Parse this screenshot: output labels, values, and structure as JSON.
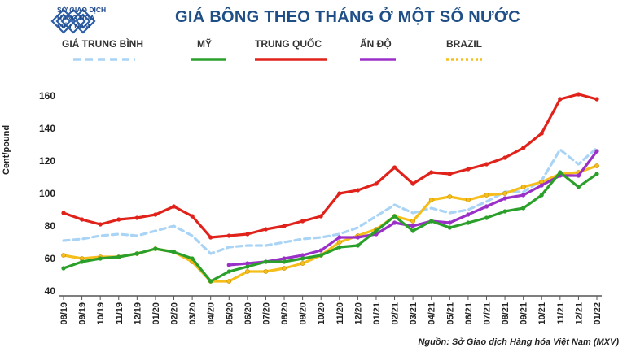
{
  "header": {
    "logo_lines": [
      "SỞ GIAO DỊCH",
      "HÀNG HÓA",
      "VIỆT NAM"
    ],
    "title": "GIÁ BÔNG THEO THÁNG Ở MỘT SỐ NƯỚC"
  },
  "legend": [
    {
      "label": "GIÁ TRUNG BÌNH",
      "color": "#a9d4f5",
      "style": "dashed"
    },
    {
      "label": "MỸ",
      "color": "#2aa02a",
      "style": "solid"
    },
    {
      "label": "TRUNG QUỐC",
      "color": "#e0221a",
      "style": "solid"
    },
    {
      "label": "ẤN ĐỘ",
      "color": "#9b30c8",
      "style": "solid"
    },
    {
      "label": "BRAZIL",
      "color": "#f5be1a",
      "style": "dotted"
    }
  ],
  "source": "Nguồn: Sở Giao dịch Hàng hóa Việt Nam (MXV)",
  "chart_data": {
    "type": "line",
    "title": "GIÁ BÔNG THEO THÁNG Ở MỘT SỐ NƯỚC",
    "xlabel": "",
    "ylabel": "Cent/pound",
    "ylim": [
      40,
      165
    ],
    "yticks": [
      40,
      60,
      80,
      100,
      120,
      140,
      160
    ],
    "grid": false,
    "categories": [
      "08/19",
      "09/19",
      "10/19",
      "11/19",
      "12/19",
      "01/20",
      "02/20",
      "03/20",
      "04/20",
      "05/20",
      "06/20",
      "07/20",
      "08/20",
      "09/20",
      "10/20",
      "11/20",
      "12/20",
      "01/21",
      "02/21",
      "03/21",
      "04/21",
      "05/21",
      "06/21",
      "07/21",
      "08/21",
      "09/21",
      "10/21",
      "11/21",
      "12/21",
      "01/22"
    ],
    "series": [
      {
        "name": "Giá trung bình",
        "color": "#a9d4f5",
        "dash": "7,5",
        "values": [
          71,
          72,
          74,
          75,
          74,
          77,
          80,
          74,
          63,
          67,
          68,
          68,
          70,
          72,
          73,
          75,
          79,
          86,
          93,
          88,
          91,
          88,
          90,
          95,
          101,
          101,
          108,
          127,
          118,
          128
        ]
      },
      {
        "name": "Mỹ",
        "color": "#2aa02a",
        "values": [
          54,
          58,
          60,
          61,
          63,
          66,
          64,
          60,
          46,
          52,
          55,
          58,
          58,
          60,
          62,
          67,
          68,
          77,
          86,
          77,
          83,
          79,
          82,
          85,
          89,
          91,
          99,
          113,
          104,
          112
        ]
      },
      {
        "name": "Trung Quốc",
        "color": "#e0221a",
        "values": [
          88,
          84,
          81,
          84,
          85,
          87,
          92,
          86,
          73,
          74,
          75,
          78,
          80,
          83,
          86,
          100,
          102,
          106,
          116,
          106,
          113,
          112,
          115,
          118,
          122,
          128,
          137,
          158,
          161,
          158
        ]
      },
      {
        "name": "Ấn Độ",
        "color": "#9b30c8",
        "start": 9,
        "values": [
          null,
          null,
          null,
          null,
          null,
          null,
          null,
          null,
          null,
          56,
          57,
          58,
          60,
          62,
          65,
          73,
          73,
          75,
          82,
          80,
          83,
          82,
          87,
          92,
          97,
          99,
          105,
          111,
          111,
          126
        ]
      },
      {
        "name": "Brazil",
        "color": "#f5be1a",
        "values": [
          62,
          60,
          61,
          61,
          63,
          66,
          64,
          58,
          46,
          46,
          52,
          52,
          54,
          57,
          62,
          70,
          74,
          78,
          86,
          83,
          96,
          98,
          96,
          99,
          100,
          104,
          107,
          112,
          113,
          117
        ]
      }
    ]
  }
}
